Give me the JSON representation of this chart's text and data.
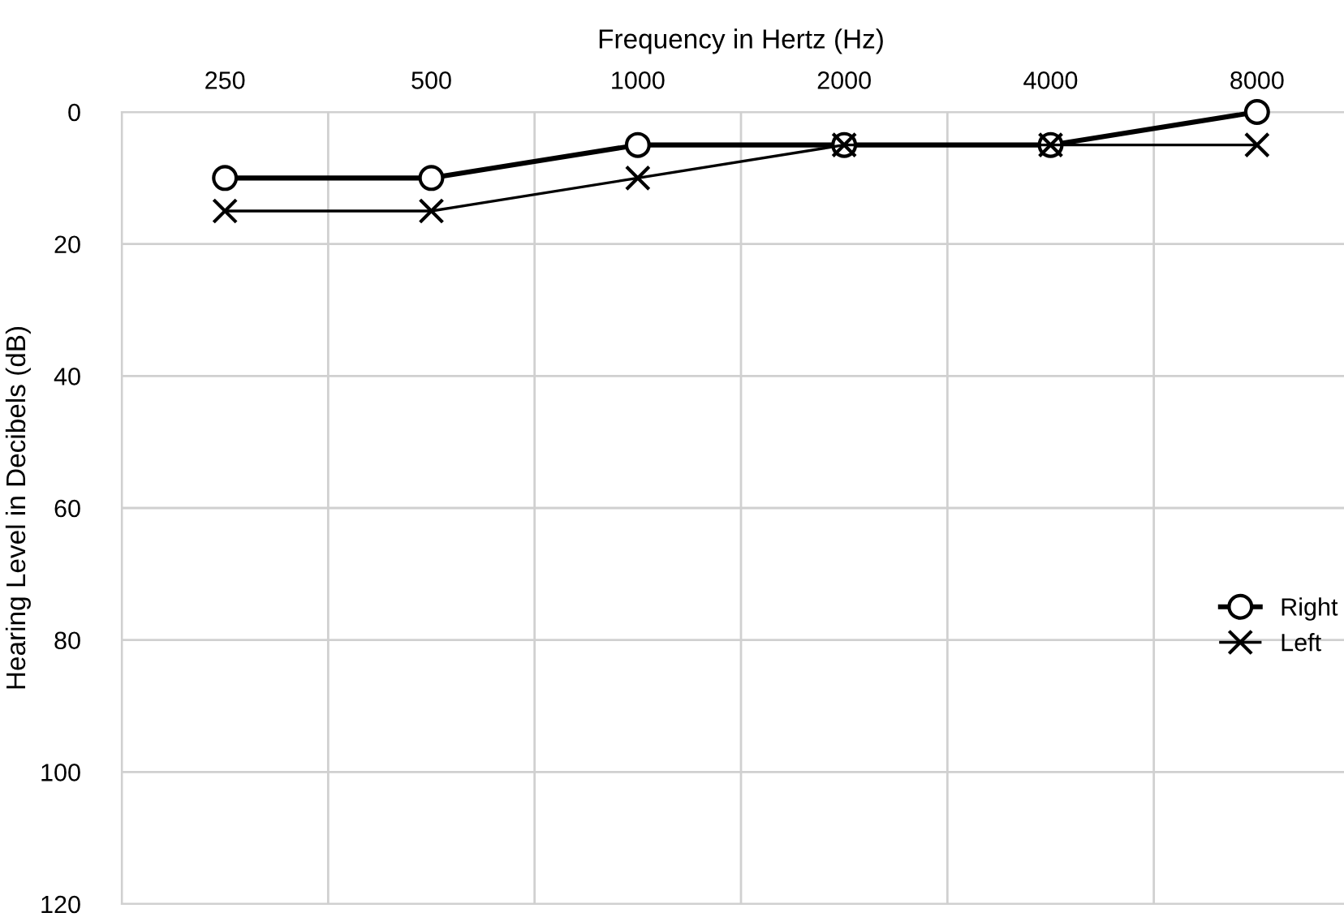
{
  "chart_data": {
    "type": "line",
    "xlabel": "Frequency in Hertz (Hz)",
    "ylabel": "Hearing Level in Decibels (dB)",
    "categories": [
      "250",
      "500",
      "1000",
      "2000",
      "4000",
      "8000"
    ],
    "series": [
      {
        "name": "Right",
        "color": "#000000",
        "values": [
          10,
          10,
          5,
          5,
          5,
          0
        ],
        "marker": "circle"
      },
      {
        "name": "Left",
        "color": "#000000",
        "values": [
          15,
          15,
          10,
          5,
          5,
          5
        ],
        "marker": "cross"
      }
    ],
    "ylim": [
      120,
      0
    ],
    "yticks": [
      0,
      20,
      40,
      60,
      80,
      100,
      120
    ],
    "grid": true,
    "legend": "right",
    "line_style": "solid"
  }
}
